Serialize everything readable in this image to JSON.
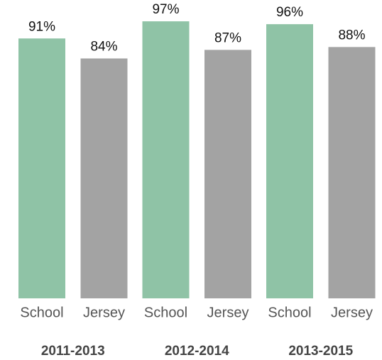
{
  "chart_data": {
    "type": "bar",
    "categories": [
      "2011-2013",
      "2012-2014",
      "2013-2015"
    ],
    "series": [
      {
        "name": "School",
        "color": "#8fc3a6",
        "values": [
          91,
          97,
          96
        ],
        "value_labels": [
          "91%",
          "97%",
          "96%"
        ]
      },
      {
        "name": "Jersey",
        "color": "#a3a3a3",
        "values": [
          84,
          87,
          88
        ],
        "value_labels": [
          "84%",
          "87%",
          "88%"
        ]
      }
    ]
  }
}
